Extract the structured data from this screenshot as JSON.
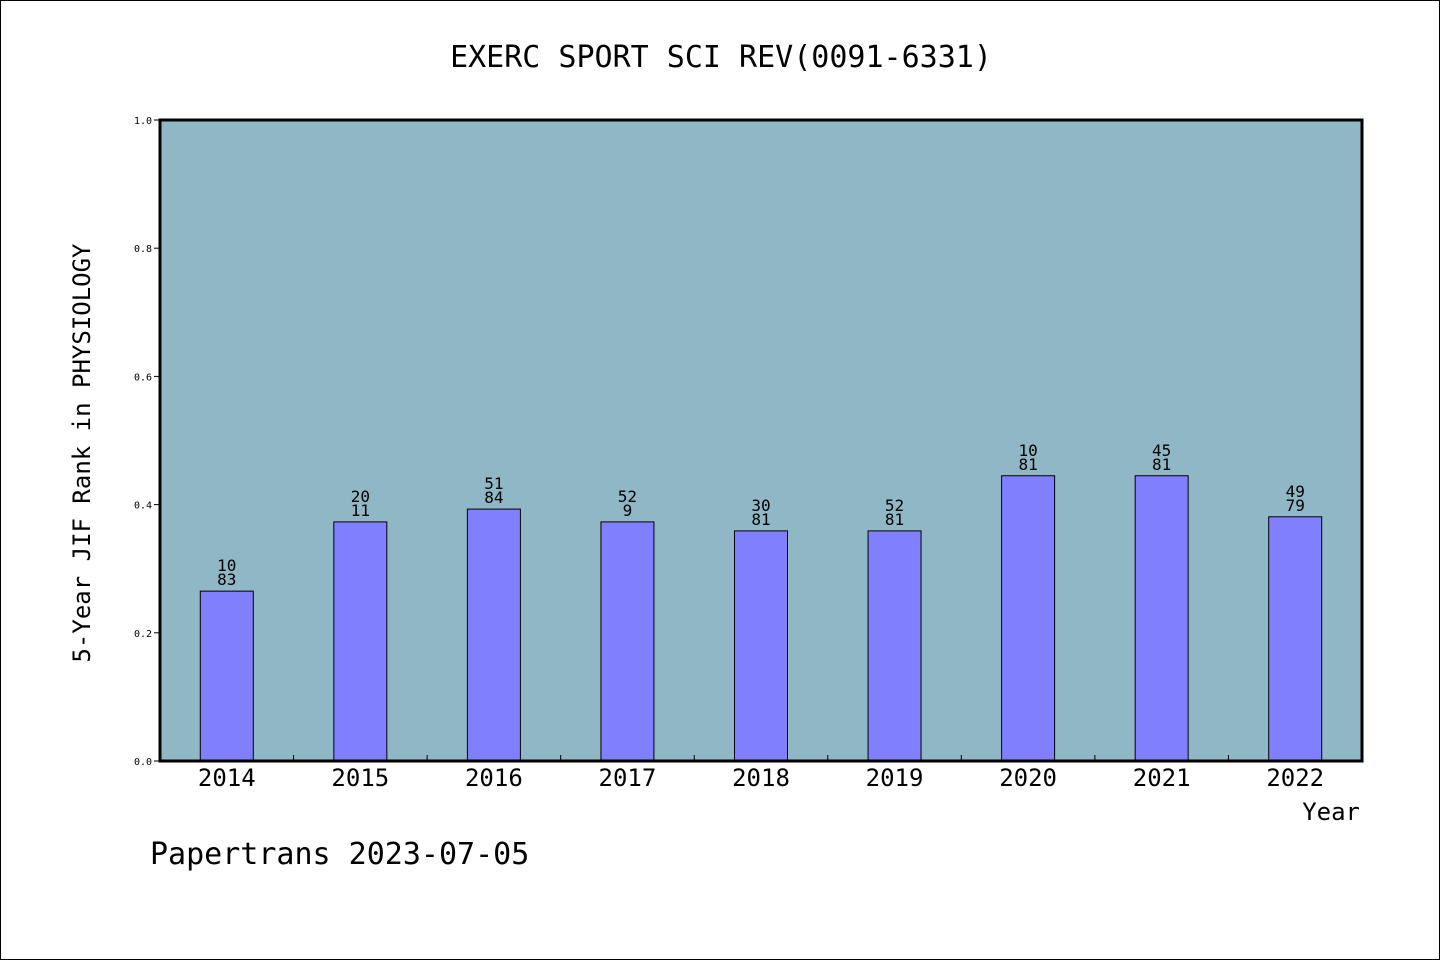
{
  "footer": "Papertrans 2023-07-05",
  "colors": {
    "plot_background": "#8fb7c5",
    "bar_fill": "#8080ff",
    "bar_stroke": "#000000"
  },
  "chart_data": {
    "type": "bar",
    "title": "EXERC SPORT SCI REV(0091-6331)",
    "xlabel": "Year",
    "ylabel": "5-Year JIF Rank in PHYSIOLOGY",
    "ylim": [
      0,
      1.0
    ],
    "yticks": [
      "0.0",
      "0.2",
      "0.4",
      "0.6",
      "0.8",
      "1.0"
    ],
    "grid": false,
    "categories": [
      "2014",
      "2015",
      "2016",
      "2017",
      "2018",
      "2019",
      "2020",
      "2021",
      "2022"
    ],
    "values": [
      0.265,
      0.373,
      0.393,
      0.373,
      0.359,
      0.359,
      0.445,
      0.445,
      0.381
    ],
    "bar_labels": [
      [
        "10",
        "83"
      ],
      [
        "20",
        "11"
      ],
      [
        "51",
        "84"
      ],
      [
        "52",
        "9"
      ],
      [
        "30",
        "81"
      ],
      [
        "52",
        "81"
      ],
      [
        "10",
        "81"
      ],
      [
        "45",
        "81"
      ],
      [
        "49",
        "79"
      ]
    ]
  }
}
